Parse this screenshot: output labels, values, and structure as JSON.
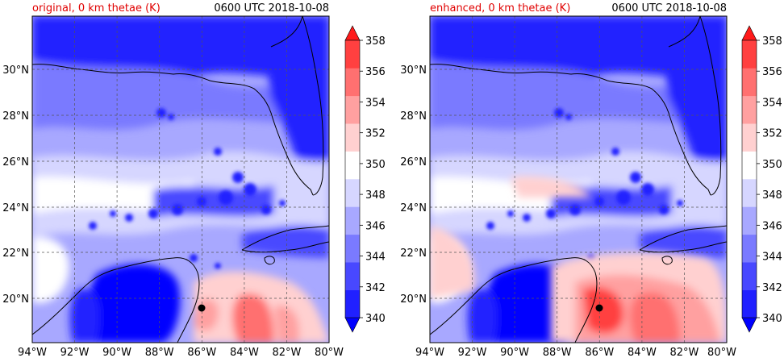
{
  "panels": [
    {
      "title": "original, 0 km thetae (K)",
      "time": "0600 UTC 2018-10-08",
      "variant": "original"
    },
    {
      "title": "enhanced, 0 km thetae (K)",
      "time": "0600 UTC 2018-10-08",
      "variant": "enhanced"
    }
  ],
  "lat_labels": [
    "20°N",
    "22°N",
    "24°N",
    "26°N",
    "28°N",
    "30°N"
  ],
  "lon_labels": [
    "94°W",
    "92°W",
    "90°W",
    "88°W",
    "86°W",
    "84°W",
    "82°W",
    "80°W"
  ],
  "colorbar": {
    "labels": [
      "340",
      "342",
      "344",
      "346",
      "348",
      "350",
      "352",
      "354",
      "356",
      "358"
    ],
    "colors": [
      "#0000ff",
      "#2020ff",
      "#4848ff",
      "#7a7aff",
      "#a8a8ff",
      "#d6d6ff",
      "#ffffff",
      "#ffd0d0",
      "#ffa0a0",
      "#ff7070",
      "#ff4040",
      "#ff1a1a"
    ]
  }
}
